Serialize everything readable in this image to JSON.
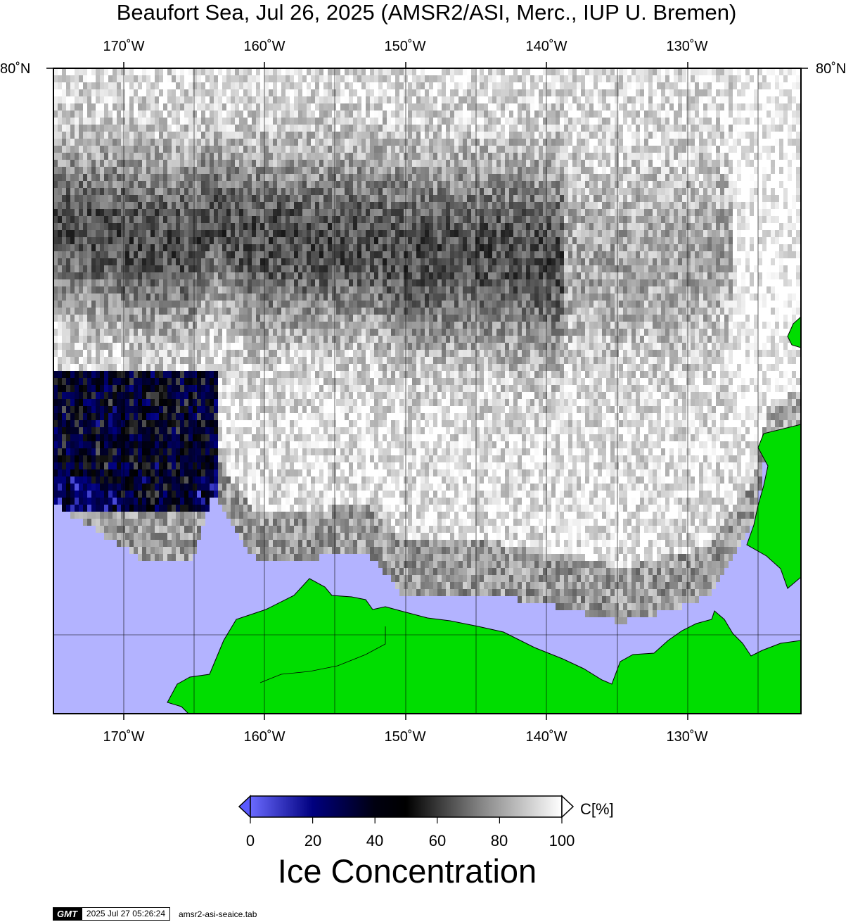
{
  "title": "Beaufort Sea, Jul 26, 2025 (AMSR2/ASI, Merc., IUP U. Bremen)",
  "map": {
    "lon_ticks": [
      "170˚W",
      "160˚W",
      "150˚W",
      "140˚W",
      "130˚W"
    ],
    "lat_ticks": [
      "80˚N"
    ],
    "colors": {
      "land": "#00dd00",
      "open_water": "#b3b3ff",
      "ice_max": "#ffffff",
      "ice_mid": "#000000",
      "ice_low": "#00007f",
      "ice_zero": "#5a5aff"
    }
  },
  "colorbar": {
    "ticks": [
      "0",
      "20",
      "40",
      "60",
      "80",
      "100"
    ],
    "unit": "C[%]",
    "title": "Ice Concentration"
  },
  "footer": {
    "logo": "GMT",
    "timestamp": "2025 Jul 27 05:26:24",
    "filename": "amsr2-asi-seaice.tab"
  }
}
